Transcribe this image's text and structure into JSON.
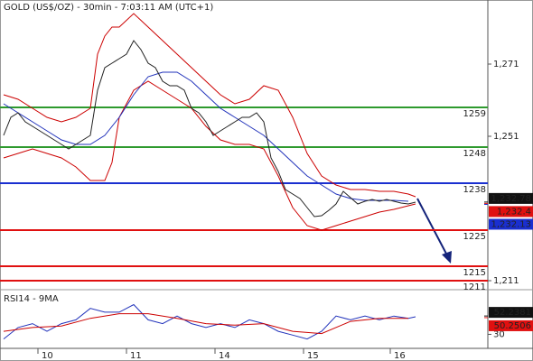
{
  "chart_data": [
    {
      "type": "line",
      "title": "GOLD (US$/OZ) - 30min - 7:03:11 AM (UTC+1)",
      "xlim": [
        0,
        540
      ],
      "xticks": [
        {
          "value": 42,
          "label": "10"
        },
        {
          "value": 140,
          "label": "11"
        },
        {
          "value": 238,
          "label": "14"
        },
        {
          "value": 336,
          "label": "15"
        },
        {
          "value": 432,
          "label": "16"
        }
      ],
      "ylim": [
        1208.75,
        1288.75
      ],
      "yticks": [
        {
          "value": 1271,
          "label": "1,271"
        },
        {
          "value": 1251,
          "label": "1,251"
        },
        {
          "value": 1211,
          "label": "1,211"
        }
      ],
      "series": [
        {
          "color": "#cc0000",
          "x": [
            4,
            20,
            36,
            52,
            68,
            84,
            100,
            108,
            116,
            124,
            132,
            148,
            164,
            180,
            196,
            212,
            228,
            244,
            260,
            276,
            292,
            308,
            324,
            340,
            356,
            372,
            388,
            404,
            420,
            436,
            452,
            460
          ],
          "values": [
            1262.5,
            1261.25,
            1258.75,
            1256.25,
            1255,
            1256.25,
            1258.75,
            1273.75,
            1278.75,
            1281.25,
            1281.25,
            1285,
            1281.25,
            1277.5,
            1273.75,
            1270,
            1266.25,
            1262.5,
            1260,
            1261.25,
            1265,
            1263.75,
            1256.25,
            1246.25,
            1240,
            1237.5,
            1236.25,
            1236.25,
            1235.75,
            1235.75,
            1235,
            1234.25
          ]
        },
        {
          "color": "#cc0000",
          "x": [
            4,
            20,
            36,
            52,
            68,
            84,
            100,
            116,
            124,
            132,
            148,
            164,
            180,
            196,
            212,
            228,
            244,
            260,
            276,
            292,
            308,
            324,
            340,
            356,
            372,
            388,
            404,
            420,
            436,
            452,
            460
          ],
          "values": [
            1245,
            1246.25,
            1247.5,
            1246.25,
            1245,
            1242.5,
            1238.75,
            1238.75,
            1243.75,
            1256.25,
            1263.75,
            1266.25,
            1263.75,
            1261.25,
            1258.75,
            1253.75,
            1250,
            1248.75,
            1248.75,
            1247.5,
            1240,
            1231.25,
            1226.25,
            1225,
            1226.25,
            1227.5,
            1228.75,
            1230,
            1230.75,
            1231.75,
            1232.25
          ]
        },
        {
          "color": "#2233bb",
          "x": [
            4,
            20,
            36,
            52,
            68,
            84,
            100,
            116,
            132,
            148,
            164,
            180,
            196,
            212,
            228,
            244,
            260,
            276,
            292,
            308,
            324,
            340,
            356,
            372,
            388,
            404,
            420,
            436,
            452
          ],
          "values": [
            1260,
            1257.5,
            1255,
            1252.5,
            1250,
            1248.75,
            1248.75,
            1251.25,
            1256.25,
            1262.5,
            1267.5,
            1268.75,
            1268.75,
            1266.25,
            1262.5,
            1258.75,
            1256.25,
            1253.75,
            1251.25,
            1247.5,
            1243.75,
            1240,
            1237.5,
            1235,
            1233.75,
            1233.25,
            1233.25,
            1233.25,
            1233
          ]
        },
        {
          "color": "#222222",
          "x": [
            4,
            12,
            20,
            28,
            36,
            44,
            52,
            60,
            68,
            76,
            84,
            92,
            100,
            108,
            116,
            124,
            132,
            140,
            148,
            156,
            164,
            172,
            180,
            188,
            196,
            204,
            212,
            220,
            228,
            236,
            244,
            252,
            260,
            268,
            276,
            284,
            292,
            300,
            308,
            316,
            324,
            332,
            340,
            348,
            356,
            364,
            372,
            380,
            388,
            396,
            404,
            412,
            420,
            428,
            436,
            444,
            452,
            460
          ],
          "values": [
            1251.25,
            1256.25,
            1257.5,
            1255,
            1253.75,
            1252.5,
            1251.25,
            1250,
            1248.75,
            1247.5,
            1248.75,
            1250,
            1251.25,
            1263.75,
            1270,
            1271.25,
            1272.5,
            1273.75,
            1277.5,
            1275,
            1271.25,
            1270,
            1266.25,
            1265,
            1265,
            1263.75,
            1258.75,
            1257.5,
            1255,
            1251.25,
            1252.5,
            1253.75,
            1255,
            1256.25,
            1256.25,
            1257.5,
            1255,
            1245,
            1241.25,
            1236.25,
            1235,
            1233.75,
            1231.25,
            1228.75,
            1229,
            1230.5,
            1232.25,
            1235.75,
            1234,
            1232.25,
            1233,
            1233.5,
            1233,
            1233.5,
            1233,
            1232.5,
            1232.25,
            1232.75
          ]
        }
      ],
      "levels": [
        {
          "value": 1259,
          "color": "#2e9a2e"
        },
        {
          "value": 1248,
          "color": "#2e9a2e"
        },
        {
          "value": 1238,
          "color": "#1a2fd0"
        },
        {
          "value": 1225,
          "color": "#e01010"
        },
        {
          "value": 1215,
          "color": "#e01010"
        },
        {
          "value": 1211,
          "color": "#e01010"
        }
      ],
      "price_tags": [
        {
          "value": 1232.78,
          "label": "1,232.78",
          "color": "#111111"
        },
        {
          "value": 1232.4,
          "label": "1,232.4",
          "color": "#e01010"
        },
        {
          "value": 1232.13,
          "label": "1,232.13",
          "color": "#1a2fd0"
        }
      ]
    },
    {
      "type": "line",
      "title": "RSI14 - 9MA",
      "xlim": [
        0,
        540
      ],
      "ylim": [
        13,
        83
      ],
      "yticks": [
        30
      ],
      "series": [
        {
          "color": "#2233bb",
          "x": [
            4,
            20,
            36,
            52,
            68,
            84,
            100,
            116,
            132,
            148,
            164,
            180,
            196,
            212,
            228,
            244,
            260,
            276,
            292,
            308,
            324,
            340,
            356,
            372,
            388,
            404,
            420,
            436,
            452,
            460
          ],
          "values": [
            24.4,
            38.3,
            43,
            33.7,
            43,
            47.6,
            61.5,
            56.9,
            56.9,
            66.1,
            47.6,
            43,
            52.2,
            43,
            38.3,
            43,
            38.3,
            47.6,
            43,
            33.7,
            29.1,
            24.4,
            33.7,
            52.2,
            47.6,
            52.2,
            47.6,
            52.2,
            49.4,
            51.3
          ]
        },
        {
          "color": "#cc0000",
          "x": [
            4,
            36,
            68,
            100,
            132,
            164,
            196,
            228,
            260,
            292,
            324,
            356,
            388,
            420,
            452
          ],
          "values": [
            33.7,
            38.3,
            40.1,
            49.4,
            55,
            55,
            49.4,
            43,
            41.1,
            43,
            33.7,
            30.9,
            45.7,
            49.4,
            49.4
          ]
        }
      ],
      "price_tags": [
        {
          "value": 52.2381,
          "label": "52.2381",
          "color": "#111111"
        },
        {
          "value": 50.2506,
          "label": "50.2506",
          "color": "#e01010"
        }
      ]
    }
  ]
}
